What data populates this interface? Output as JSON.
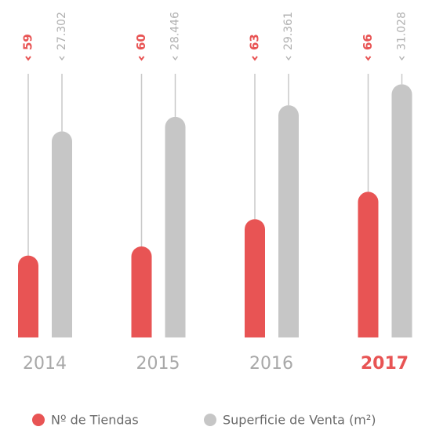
{
  "chart_data": {
    "type": "bar",
    "categories": [
      "2014",
      "2015",
      "2016",
      "2017"
    ],
    "series": [
      {
        "name": "Nº de Tiendas",
        "color": "#e85454",
        "values": [
          59,
          60,
          63,
          66
        ]
      },
      {
        "name": "Superficie de Venta (m²)",
        "color": "#c6c6c6",
        "axis": "y2",
        "values": [
          27302,
          28446,
          29361,
          31028
        ],
        "value_labels": [
          "27.302",
          "28.446",
          "29.361",
          "31.028"
        ]
      }
    ],
    "ylim": [
      50,
      75
    ],
    "y2lim": [
      11000,
      29000
    ],
    "grid": false
  }
}
